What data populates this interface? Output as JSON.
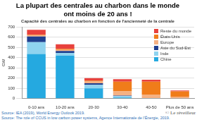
{
  "chart_data": {
    "type": "bar",
    "title": [
      "La plupart des centrales au charbon dans le monde",
      "ont moins de 20 ans !"
    ],
    "subtitle": "Capacité des centrales au charbon en fonction de l'ancienneté de la centrale",
    "y_label": "GW",
    "categories": [
      "0-10 ans",
      "10-20 ans",
      "20-30",
      "30-40",
      "40-50",
      "Plus de 50 ans"
    ],
    "series": [
      {
        "name": "Chine",
        "color": "#25a9e0",
        "values": [
          435,
          420,
          100,
          10,
          0,
          0
        ]
      },
      {
        "name": "Inde",
        "color": "#8fd3ef",
        "values": [
          115,
          25,
          35,
          15,
          5,
          0
        ]
      },
      {
        "name": "Asie du Sud-Est",
        "color": "#1f3f8f",
        "values": [
          55,
          20,
          15,
          5,
          0,
          0
        ]
      },
      {
        "name": "Europe",
        "color": "#f5b183",
        "values": [
          15,
          10,
          20,
          40,
          35,
          20
        ]
      },
      {
        "name": "États-Unis",
        "color": "#f07c1a",
        "values": [
          5,
          10,
          5,
          95,
          125,
          50
        ]
      },
      {
        "name": "Reste du monde",
        "color": "#e8413c",
        "values": [
          45,
          45,
          25,
          25,
          20,
          10
        ]
      }
    ],
    "ylim": [
      0,
      700
    ],
    "yticks": [
      0,
      100,
      200,
      300,
      400,
      500,
      600,
      700
    ],
    "grid": true,
    "stacked": true,
    "legend": "top-right",
    "annotations": [
      "Source: IEA (2019), World Energy Outlook 2019.",
      "Source: The role of CCUS in low carbon power systems, Agence Internationale de l'Énergie, 2019.",
      "© Le réveilleur"
    ]
  }
}
